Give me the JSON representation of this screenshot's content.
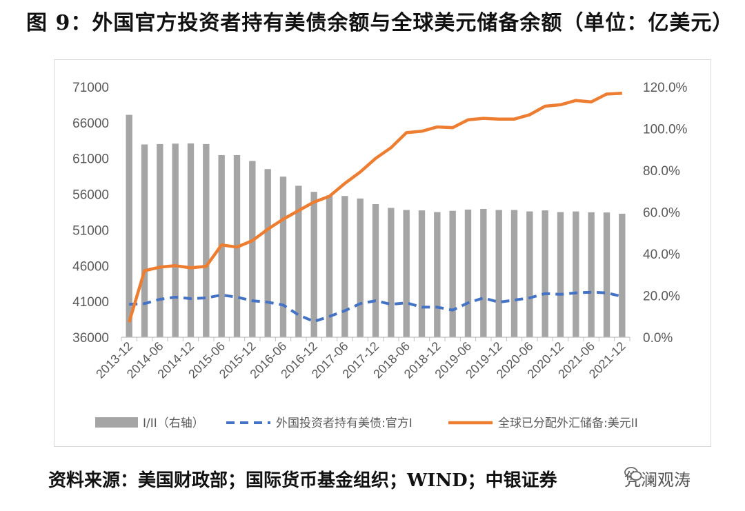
{
  "title": "图 9：外国官方投资者持有美债余额与全球美元储备余额（单位：亿美元）",
  "source": "资料来源：美国财政部；国际货币基金组织；WIND；中银证券",
  "watermark": "凭澜观涛",
  "chart_data": {
    "type": "bar+line",
    "left_axis": {
      "min": 36000,
      "max": 71000,
      "ticks": [
        "36000",
        "41000",
        "46000",
        "51000",
        "56000",
        "61000",
        "66000",
        "71000"
      ]
    },
    "right_axis": {
      "min": 0,
      "max": 1.2,
      "ticks": [
        "0.0%",
        "20.0%",
        "40.0%",
        "60.0%",
        "80.0%",
        "100.0%",
        "120.0%"
      ]
    },
    "x_labels": [
      "2013-12",
      "2014-06",
      "2014-12",
      "2015-06",
      "2015-12",
      "2016-06",
      "2016-12",
      "2017-06",
      "2017-12",
      "2018-06",
      "2018-12",
      "2019-06",
      "2019-12",
      "2020-06",
      "2020-12",
      "2021-06",
      "2021-12"
    ],
    "quarters": [
      "2013-12",
      "2014-03",
      "2014-06",
      "2014-09",
      "2014-12",
      "2015-03",
      "2015-06",
      "2015-09",
      "2015-12",
      "2016-03",
      "2016-06",
      "2016-09",
      "2016-12",
      "2017-03",
      "2017-06",
      "2017-09",
      "2017-12",
      "2018-03",
      "2018-06",
      "2018-09",
      "2018-12",
      "2019-03",
      "2019-06",
      "2019-09",
      "2019-12",
      "2020-03",
      "2020-06",
      "2020-09",
      "2020-12",
      "2021-03",
      "2021-06",
      "2021-09",
      "2021-12"
    ],
    "series": [
      {
        "name": "I/II（右轴）",
        "type": "bar",
        "axis": "right",
        "color": "#a5a5a5",
        "values": [
          1.066,
          0.924,
          0.926,
          0.928,
          0.929,
          0.926,
          0.873,
          0.873,
          0.845,
          0.806,
          0.77,
          0.726,
          0.697,
          0.68,
          0.677,
          0.665,
          0.638,
          0.62,
          0.61,
          0.608,
          0.6,
          0.606,
          0.612,
          0.615,
          0.61,
          0.61,
          0.603,
          0.608,
          0.6,
          0.603,
          0.599,
          0.598,
          0.592
        ]
      },
      {
        "name": "外国投资者持有美债:官方I",
        "type": "line",
        "axis": "left",
        "style": "dashed",
        "color": "#4472c4",
        "values": [
          40600,
          40700,
          41300,
          41600,
          41400,
          41500,
          41900,
          41600,
          41100,
          40900,
          40500,
          39100,
          38200,
          38900,
          39700,
          40700,
          41100,
          40600,
          40800,
          40200,
          40200,
          39800,
          40800,
          41500,
          40900,
          41200,
          41500,
          42100,
          42000,
          42200,
          42300,
          42200,
          41700
        ]
      },
      {
        "name": "全球已分配外汇储备:美元II",
        "type": "line",
        "axis": "left",
        "style": "solid",
        "color": "#ed7d31",
        "values": [
          38100,
          45300,
          45800,
          46000,
          45700,
          45900,
          48900,
          48600,
          49500,
          51100,
          52500,
          53700,
          54900,
          55700,
          57500,
          59100,
          61000,
          62500,
          64600,
          64800,
          65400,
          65300,
          66400,
          66600,
          66500,
          66500,
          67100,
          68300,
          68500,
          69100,
          68900,
          70000,
          70100
        ]
      }
    ],
    "legend_position": "bottom"
  }
}
